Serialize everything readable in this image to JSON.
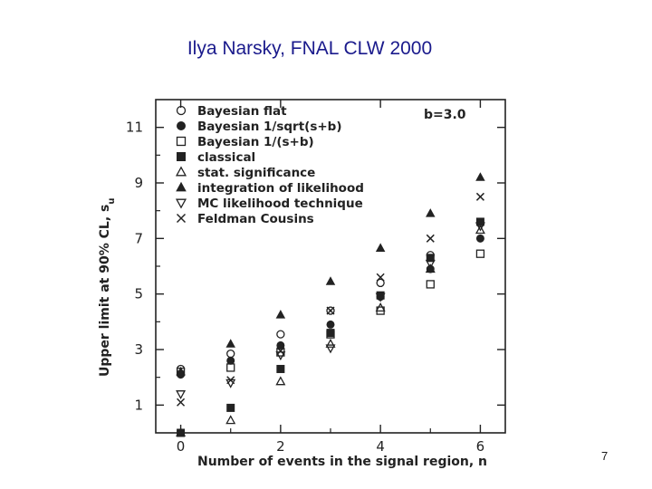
{
  "slide": {
    "title": "Ilya Narsky, FNAL CLW 2000",
    "page_number": "7"
  },
  "chart_data": {
    "type": "scatter",
    "xlabel": "Number of events in the signal region, n",
    "ylabel": "Upper limit at 90% CL, s",
    "ylabel_subscript": "u",
    "annotation": "b=3.0",
    "xlim": [
      -0.5,
      6.5
    ],
    "ylim": [
      0,
      12
    ],
    "xticks": [
      0,
      2,
      4,
      6
    ],
    "yticks": [
      1,
      3,
      5,
      7,
      9,
      11
    ],
    "legend_position": "top-left",
    "series": [
      {
        "name": "Bayesian flat",
        "marker": "open-circle",
        "x": [
          0,
          1,
          2,
          3,
          4,
          5,
          6
        ],
        "y": [
          2.3,
          2.85,
          3.55,
          4.4,
          5.4,
          6.4,
          7.55
        ]
      },
      {
        "name": "Bayesian 1/sqrt(s+b)",
        "marker": "filled-circle",
        "x": [
          0,
          1,
          2,
          3,
          4,
          5,
          6
        ],
        "y": [
          2.1,
          2.6,
          3.15,
          3.9,
          4.9,
          5.9,
          7.0
        ]
      },
      {
        "name": "Bayesian 1/(s+b)",
        "marker": "open-square",
        "x": [
          0,
          1,
          2,
          3,
          4,
          5,
          6
        ],
        "y": [
          2.2,
          2.35,
          2.9,
          3.55,
          4.4,
          5.35,
          6.45
        ]
      },
      {
        "name": "classical",
        "marker": "filled-square",
        "x": [
          0,
          1,
          2,
          3,
          4,
          5,
          6
        ],
        "y": [
          0.0,
          0.9,
          2.3,
          3.6,
          4.95,
          6.3,
          7.6
        ]
      },
      {
        "name": "stat. significance",
        "marker": "open-triangle-up",
        "x": [
          0,
          1,
          2,
          3,
          4,
          5,
          6
        ],
        "y": [
          0.0,
          0.45,
          1.85,
          3.2,
          4.5,
          5.9,
          7.3
        ]
      },
      {
        "name": "integration of likelihood",
        "marker": "filled-triangle-up",
        "x": [
          0,
          1,
          2,
          3,
          4,
          5,
          6
        ],
        "y": [
          2.2,
          3.2,
          4.25,
          5.45,
          6.65,
          7.9,
          9.2
        ]
      },
      {
        "name": "MC likelihood technique",
        "marker": "open-triangle-down",
        "x": [
          0,
          1,
          2,
          3,
          4,
          5,
          6
        ],
        "y": [
          1.4,
          1.8,
          2.8,
          3.05,
          4.9,
          6.1,
          7.45
        ]
      },
      {
        "name": "Feldman Cousins",
        "marker": "cross",
        "x": [
          0,
          1,
          2,
          3,
          4,
          5,
          6
        ],
        "y": [
          1.1,
          1.9,
          2.95,
          4.4,
          5.6,
          7.0,
          8.5
        ]
      }
    ]
  }
}
